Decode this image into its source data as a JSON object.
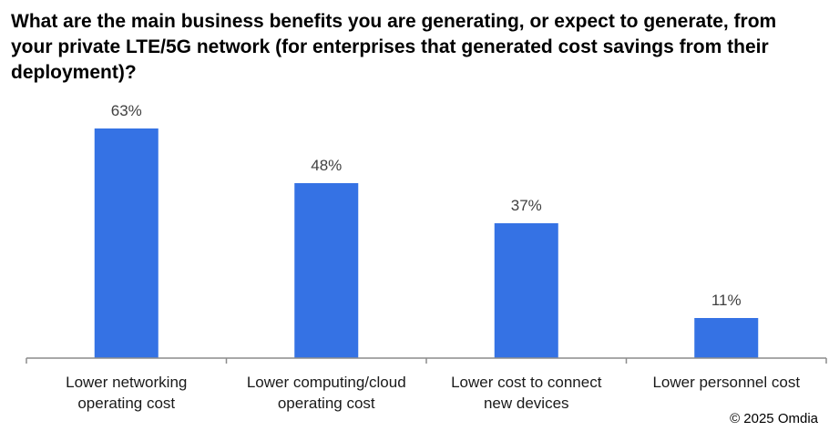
{
  "chart_data": {
    "type": "bar",
    "title": "What are the main business benefits you are generating, or expect to generate, from your private LTE/5G network (for enterprises that generated cost savings from their deployment)?",
    "categories": [
      [
        "Lower networking",
        "operating cost"
      ],
      [
        "Lower computing/cloud",
        "operating cost"
      ],
      [
        "Lower cost to connect",
        "new devices"
      ],
      [
        "Lower personnel cost"
      ]
    ],
    "values": [
      63,
      48,
      37,
      11
    ],
    "value_labels": [
      "63%",
      "48%",
      "37%",
      "11%"
    ],
    "unit": "%",
    "ylim": [
      0,
      65
    ],
    "grid": false,
    "legend": "none",
    "bar_color": "#3572E4",
    "axis_color": "#8c8c8c"
  },
  "footer": {
    "copyright": "© 2025 Omdia"
  }
}
